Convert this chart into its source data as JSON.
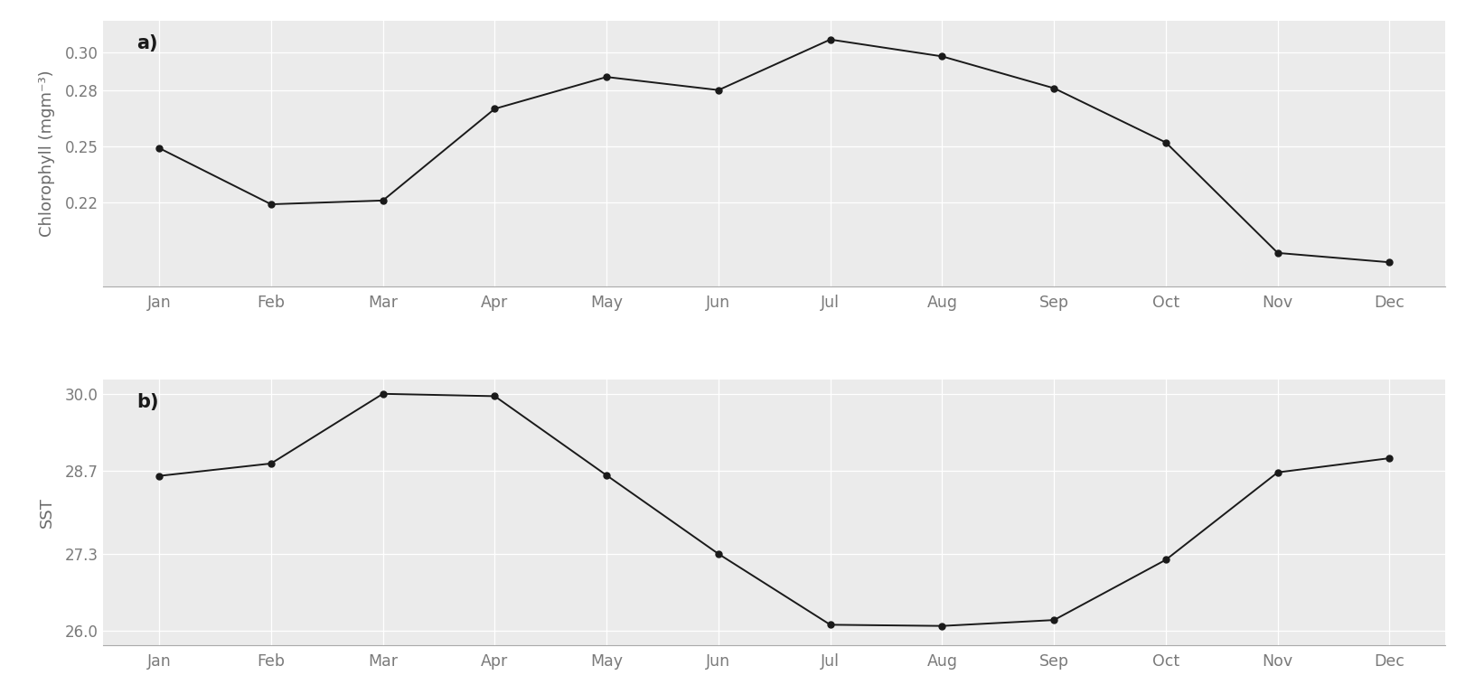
{
  "months": [
    "Jan",
    "Feb",
    "Mar",
    "Apr",
    "May",
    "Jun",
    "Jul",
    "Aug",
    "Sep",
    "Oct",
    "Nov",
    "Dec"
  ],
  "chl": [
    0.249,
    0.219,
    0.221,
    0.27,
    0.287,
    0.28,
    0.307,
    0.298,
    0.281,
    0.252,
    0.193,
    0.188
  ],
  "sst": [
    28.62,
    28.83,
    30.01,
    29.97,
    28.63,
    27.3,
    26.1,
    26.08,
    26.18,
    27.2,
    28.68,
    28.92
  ],
  "chl_ylabel": "Chlorophyll (mgm⁻³)",
  "sst_ylabel": "SST",
  "chl_ylim": [
    0.175,
    0.317
  ],
  "sst_ylim": [
    25.75,
    30.25
  ],
  "chl_yticks": [
    0.22,
    0.25,
    0.28,
    0.3
  ],
  "sst_yticks": [
    26.0,
    27.3,
    28.7,
    30.0
  ],
  "plot_bg": "#ebebeb",
  "fig_bg": "#ffffff",
  "line_color": "#1a1a1a",
  "marker": "o",
  "markersize": 5,
  "linewidth": 1.4,
  "label_a": "a)",
  "label_b": "b)",
  "tick_label_color": "#7a7a7a",
  "ylabel_color": "#6a6a6a",
  "grid_color": "#ffffff",
  "grid_linewidth": 0.9
}
